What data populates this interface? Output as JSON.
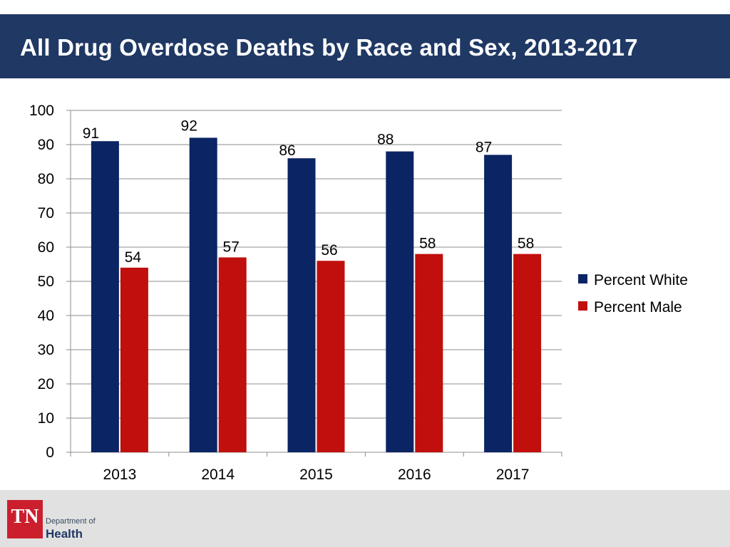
{
  "slide": {
    "title": "All Drug Overdose Deaths by Race and Sex, 2013-2017"
  },
  "colors": {
    "title_bar": "#1f3864",
    "series_white": "#0b2463",
    "series_male": "#c00f0c",
    "footer": "#e1e1e1",
    "logo_red": "#cc1f2e"
  },
  "logo": {
    "badge_text": "TN",
    "department_text": "Department of",
    "health_text": "Health"
  },
  "chart_data": {
    "type": "bar",
    "title": "All Drug Overdose Deaths by Race and Sex, 2013-2017",
    "xlabel": "",
    "ylabel": "",
    "ylim": [
      0,
      100
    ],
    "yticks": [
      0,
      10,
      20,
      30,
      40,
      50,
      60,
      70,
      80,
      90,
      100
    ],
    "grid": true,
    "legend_position": "right",
    "categories": [
      "2013",
      "2014",
      "2015",
      "2016",
      "2017"
    ],
    "series": [
      {
        "name": "Percent White",
        "color": "#0b2463",
        "values": [
          91,
          92,
          86,
          88,
          87
        ]
      },
      {
        "name": "Percent Male",
        "color": "#c00f0c",
        "values": [
          54,
          57,
          56,
          58,
          58
        ]
      }
    ]
  }
}
